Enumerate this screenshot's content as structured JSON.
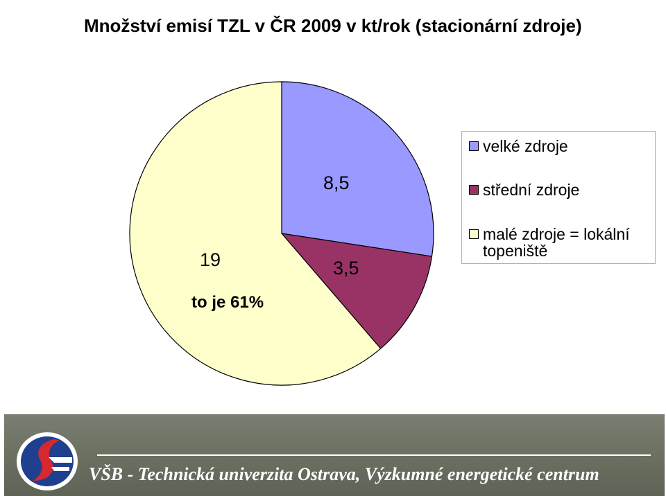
{
  "title": "Množství emisí TZL v ČR 2009 v kt/rok (stacionární zdroje)",
  "chart_data": {
    "type": "pie",
    "title": "Množství emisí TZL v ČR 2009 v kt/rok (stacionární zdroje)",
    "categories": [
      "velké zdroje",
      "střední zdroje",
      "malé zdroje = lokální topeniště"
    ],
    "values": [
      8.5,
      3.5,
      19
    ],
    "data_labels": [
      "8,5",
      "3,5",
      "19"
    ],
    "colors": [
      "#9999ff",
      "#993366",
      "#ffffcc"
    ],
    "annotation": "to je 61%",
    "start_angle": "12 o'clock",
    "direction": "clockwise",
    "legend_position": "right"
  },
  "legend": {
    "items": [
      {
        "label": "velké zdroje",
        "color": "#9999ff"
      },
      {
        "label": "střední zdroje",
        "color": "#993366"
      },
      {
        "label": "malé zdroje = lokální topeniště",
        "color": "#ffffcc"
      }
    ]
  },
  "footer": {
    "text": "VŠB - Technická univerzita Ostrava, Výzkumné energetické centrum",
    "logo_icon": "vsb-logo-icon"
  }
}
